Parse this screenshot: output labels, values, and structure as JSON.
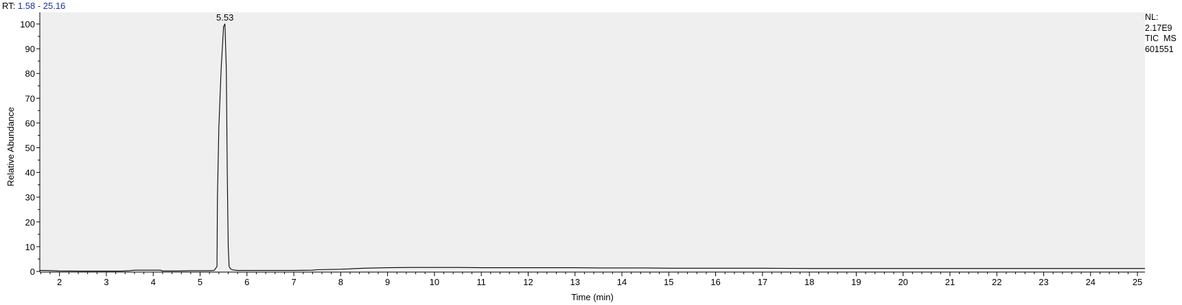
{
  "header": {
    "rt_label": "RT:",
    "rt_range": "1.58 - 25.16"
  },
  "info": {
    "nl_label": "NL:",
    "nl_value": "2.17E9",
    "scan_type": "TIC  MS",
    "sample": "601551"
  },
  "chart_data": {
    "type": "line",
    "xlabel": "Time (min)",
    "ylabel": "Relative Abundance",
    "xlim": [
      1.58,
      25.16
    ],
    "ylim": [
      0,
      100
    ],
    "x_ticks": [
      2,
      3,
      4,
      5,
      6,
      7,
      8,
      9,
      10,
      11,
      12,
      13,
      14,
      15,
      16,
      17,
      18,
      19,
      20,
      21,
      22,
      23,
      24,
      25
    ],
    "y_ticks": [
      0,
      10,
      20,
      30,
      40,
      50,
      60,
      70,
      80,
      90,
      100
    ],
    "peak_labels": [
      {
        "x": 5.53,
        "y": 100,
        "text": "5.53"
      }
    ],
    "series": [
      {
        "x": [
          1.58,
          1.7,
          2.0,
          2.5,
          3.0,
          3.3,
          3.5,
          3.6,
          3.7,
          4.0,
          4.15,
          4.2,
          4.5,
          4.8,
          5.0,
          5.2,
          5.3,
          5.36,
          5.37,
          5.4,
          5.45,
          5.5,
          5.53,
          5.56,
          5.58,
          5.6,
          5.62,
          5.65,
          5.7,
          5.8,
          6.0,
          6.5,
          7.0,
          7.4,
          7.5,
          8.0,
          8.5,
          9.0,
          9.5,
          10.0,
          10.5,
          11.0,
          11.5,
          12.0,
          12.5,
          13.0,
          13.5,
          14.0,
          14.5,
          15.0,
          16.0,
          17.0,
          18.0,
          19.0,
          20.0,
          21.0,
          22.0,
          23.0,
          24.0,
          25.16
        ],
        "y": [
          0.4,
          0.4,
          0.2,
          0.1,
          0.1,
          0.1,
          0.3,
          0.5,
          0.5,
          0.5,
          0.5,
          0.2,
          0.2,
          0.3,
          0.3,
          0.3,
          0.4,
          2,
          30,
          58,
          82,
          99,
          100,
          82,
          40,
          10,
          2,
          1,
          0.6,
          0.4,
          0.4,
          0.4,
          0.4,
          0.5,
          0.7,
          0.9,
          1.3,
          1.5,
          1.6,
          1.6,
          1.6,
          1.5,
          1.5,
          1.5,
          1.5,
          1.5,
          1.4,
          1.4,
          1.4,
          1.3,
          1.3,
          1.3,
          1.2,
          1.2,
          1.2,
          1.2,
          1.2,
          1.2,
          1.2,
          1.2
        ]
      }
    ],
    "plot_background": "#efefef",
    "line_color": "#000000",
    "header_range_color": "#1c2e9e"
  }
}
